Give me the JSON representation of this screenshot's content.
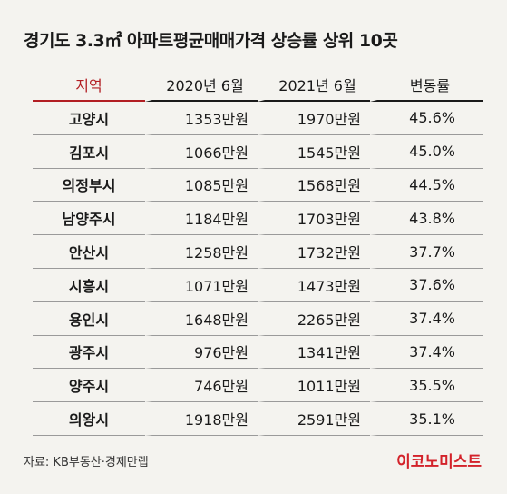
{
  "title": "경기도 3.3㎡ 아파트평균매매가격 상승률 상위 10곳",
  "colors": {
    "accent": "#b21e23",
    "brand": "#d3222a",
    "background": "#f4f3ef"
  },
  "headers": [
    "지역",
    "2020년 6월",
    "2021년 6월",
    "변동률"
  ],
  "rows": [
    [
      "고양시",
      "1353만원",
      "1970만원",
      "45.6%"
    ],
    [
      "김포시",
      "1066만원",
      "1545만원",
      "45.0%"
    ],
    [
      "의정부시",
      "1085만원",
      "1568만원",
      "44.5%"
    ],
    [
      "남양주시",
      "1184만원",
      "1703만원",
      "43.8%"
    ],
    [
      "안산시",
      "1258만원",
      "1732만원",
      "37.7%"
    ],
    [
      "시흥시",
      "1071만원",
      "1473만원",
      "37.6%"
    ],
    [
      "용인시",
      "1648만원",
      "2265만원",
      "37.4%"
    ],
    [
      "광주시",
      "976만원",
      "1341만원",
      "37.4%"
    ],
    [
      "양주시",
      "746만원",
      "1011만원",
      "35.5%"
    ],
    [
      "의왕시",
      "1918만원",
      "2591만원",
      "35.1%"
    ]
  ],
  "source": "자료: KB부동산·경제만랩",
  "brand": "이코노미스트"
}
